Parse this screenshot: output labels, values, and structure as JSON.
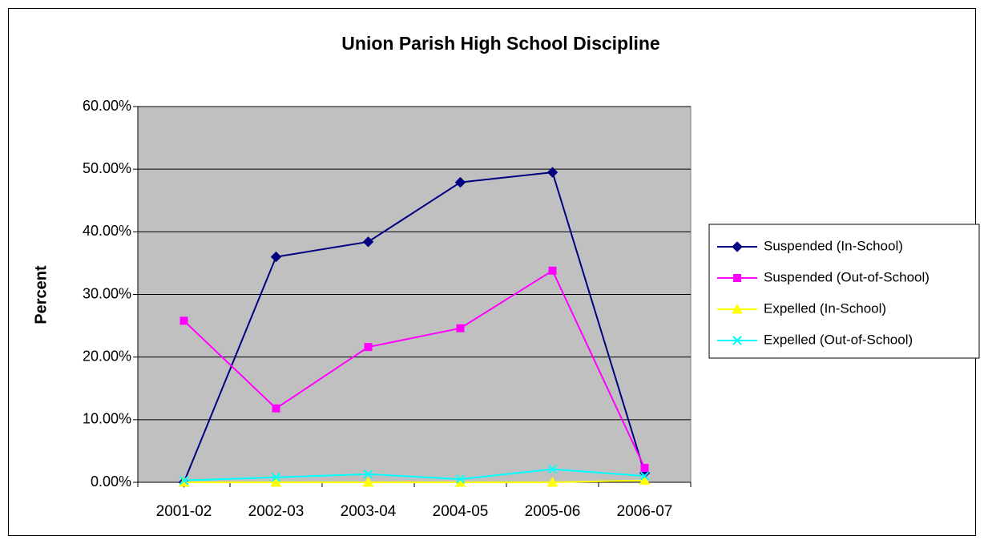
{
  "chart_data": {
    "type": "line",
    "title": "Union Parish High School Discipline",
    "y_label": "Percent",
    "categories": [
      "2001-02",
      "2002-03",
      "2003-04",
      "2004-05",
      "2005-06",
      "2006-07"
    ],
    "series": [
      {
        "name": "Suspended (In-School)",
        "color": "#000080",
        "marker": "diamond",
        "values": [
          0,
          36,
          38.4,
          47.9,
          49.5,
          1.5
        ]
      },
      {
        "name": "Suspended (Out-of-School)",
        "color": "#ff00ff",
        "marker": "square",
        "values": [
          25.8,
          11.8,
          21.6,
          24.6,
          33.8,
          2.3
        ]
      },
      {
        "name": "Expelled (In-School)",
        "color": "#ffff00",
        "marker": "triangle",
        "values": [
          0,
          0,
          0,
          0,
          0,
          0.3
        ]
      },
      {
        "name": "Expelled (Out-of-School)",
        "color": "#00ffff",
        "marker": "x",
        "values": [
          0.3,
          0.8,
          1.3,
          0.5,
          2.1,
          1.0
        ]
      }
    ],
    "ylim": [
      0,
      60
    ],
    "yticks": [
      {
        "value": 0,
        "label": "0.00%"
      },
      {
        "value": 10,
        "label": "10.00%"
      },
      {
        "value": 20,
        "label": "20.00%"
      },
      {
        "value": 30,
        "label": "30.00%"
      },
      {
        "value": 40,
        "label": "40.00%"
      },
      {
        "value": 50,
        "label": "50.00%"
      },
      {
        "value": 60,
        "label": "60.00%"
      }
    ],
    "grid": true,
    "plot_background": "#c0c0c0",
    "legend": "right"
  }
}
